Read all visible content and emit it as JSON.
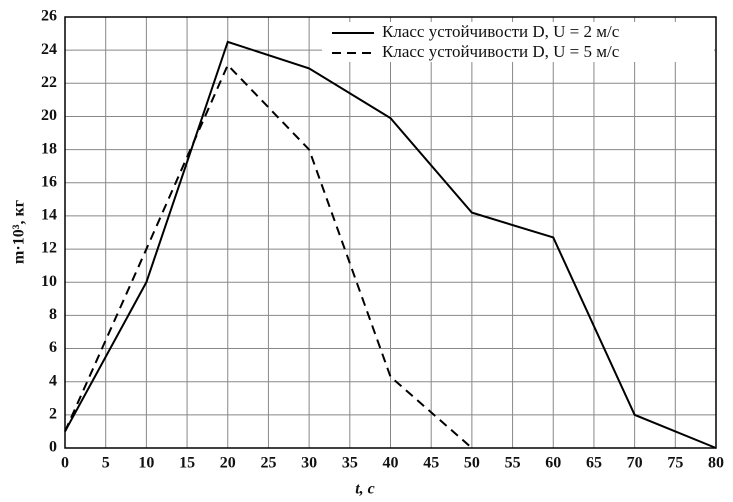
{
  "chart_data": {
    "type": "line",
    "x": [
      0,
      10,
      20,
      30,
      40,
      50,
      60,
      70,
      80
    ],
    "series": [
      {
        "name": "Класс устойчивости D, U = 2 м/с",
        "color": "#000000",
        "dash": false,
        "values": [
          1,
          10,
          24.5,
          22.9,
          19.9,
          14.2,
          12.7,
          2,
          0
        ]
      },
      {
        "name": "Класс устойчивости D, U = 5 м/с",
        "color": "#000000",
        "dash": true,
        "values": [
          1,
          12,
          23.1,
          18,
          4.3,
          0,
          null,
          null,
          null
        ]
      }
    ],
    "xlabel": "t, с",
    "ylabel": "m·10³, кг",
    "xlim": [
      0,
      80
    ],
    "xticks": [
      0,
      5,
      10,
      15,
      20,
      25,
      30,
      35,
      40,
      45,
      50,
      55,
      60,
      65,
      70,
      75,
      80
    ],
    "ylim": [
      0,
      26
    ],
    "yticks": [
      0,
      2,
      4,
      6,
      8,
      10,
      12,
      14,
      16,
      18,
      20,
      22,
      24,
      26
    ],
    "grid": true,
    "legend": "upper right"
  }
}
